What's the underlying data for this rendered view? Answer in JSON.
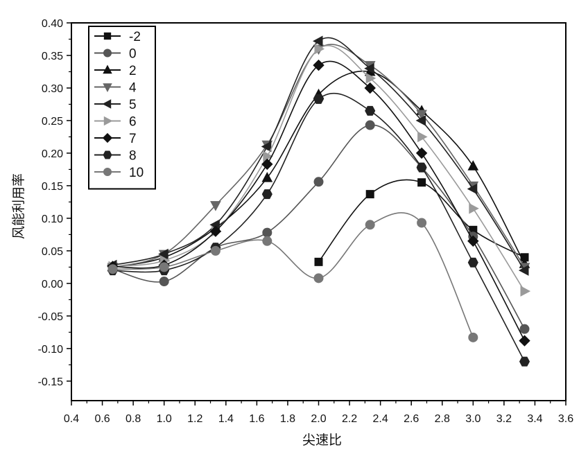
{
  "chart_data": {
    "type": "line",
    "xlabel": "尖速比",
    "ylabel": "风能利用率",
    "xlim": [
      0.4,
      3.6
    ],
    "ylim": [
      -0.18,
      0.4
    ],
    "x_ticks": [
      "0.4",
      "0.6",
      "0.8",
      "1.0",
      "1.2",
      "1.4",
      "1.6",
      "1.8",
      "2.0",
      "2.2",
      "2.4",
      "2.6",
      "2.8",
      "3.0",
      "3.2",
      "3.4",
      "3.6"
    ],
    "y_ticks": [
      "-0.15",
      "-0.10",
      "-0.05",
      "0.00",
      "0.05",
      "0.10",
      "0.15",
      "0.20",
      "0.25",
      "0.30",
      "0.35",
      "0.40"
    ],
    "grid": false,
    "legend_position": "top-left",
    "series": [
      {
        "name": "-2",
        "marker": "square",
        "color": "#111111",
        "x": [
          2.0,
          2.333,
          2.667,
          3.0,
          3.333
        ],
        "y": [
          0.033,
          0.137,
          0.155,
          0.082,
          0.04
        ]
      },
      {
        "name": "0",
        "marker": "circle",
        "color": "#555555",
        "x": [
          0.667,
          1.0,
          1.333,
          1.667,
          2.0,
          2.333,
          2.667,
          3.0,
          3.333
        ],
        "y": [
          0.022,
          0.003,
          0.055,
          0.078,
          0.156,
          0.243,
          0.178,
          0.072,
          -0.07
        ]
      },
      {
        "name": "2",
        "marker": "triangle-up",
        "color": "#111111",
        "x": [
          0.667,
          1.0,
          1.333,
          1.667,
          2.0,
          2.333,
          2.667,
          3.0,
          3.333
        ],
        "y": [
          0.025,
          0.04,
          0.085,
          0.162,
          0.29,
          0.325,
          0.265,
          0.18,
          0.03
        ]
      },
      {
        "name": "4",
        "marker": "triangle-down",
        "color": "#666666",
        "x": [
          0.667,
          1.0,
          1.333,
          1.667,
          2.0,
          2.333,
          2.667,
          3.0,
          3.333
        ],
        "y": [
          0.025,
          0.045,
          0.12,
          0.213,
          0.36,
          0.335,
          0.26,
          0.15,
          0.025
        ]
      },
      {
        "name": "5",
        "marker": "triangle-left",
        "color": "#222222",
        "x": [
          0.667,
          1.0,
          1.333,
          1.667,
          2.0,
          2.333,
          2.667,
          3.0,
          3.333
        ],
        "y": [
          0.028,
          0.045,
          0.09,
          0.21,
          0.372,
          0.33,
          0.25,
          0.145,
          0.02
        ]
      },
      {
        "name": "6",
        "marker": "triangle-right",
        "color": "#9a9a9a",
        "x": [
          0.667,
          1.0,
          1.333,
          1.667,
          2.0,
          2.333,
          2.667,
          3.0,
          3.333
        ],
        "y": [
          0.026,
          0.035,
          0.08,
          0.195,
          0.36,
          0.315,
          0.225,
          0.115,
          -0.012
        ]
      },
      {
        "name": "7",
        "marker": "diamond",
        "color": "#111111",
        "x": [
          0.667,
          1.0,
          1.333,
          1.667,
          2.0,
          2.333,
          2.667,
          3.0,
          3.333
        ],
        "y": [
          0.026,
          0.028,
          0.08,
          0.183,
          0.335,
          0.3,
          0.2,
          0.065,
          -0.088
        ]
      },
      {
        "name": "8",
        "marker": "hexagon",
        "color": "#222222",
        "x": [
          0.667,
          1.0,
          1.333,
          1.667,
          2.0,
          2.333,
          2.667,
          3.0,
          3.333
        ],
        "y": [
          0.02,
          0.02,
          0.055,
          0.137,
          0.283,
          0.265,
          0.178,
          0.032,
          -0.12
        ]
      },
      {
        "name": "10",
        "marker": "circle",
        "color": "#777777",
        "x": [
          0.667,
          1.0,
          1.333,
          1.667,
          2.0,
          2.333,
          2.667,
          3.0
        ],
        "y": [
          0.022,
          0.025,
          0.05,
          0.065,
          0.008,
          0.09,
          0.093,
          -0.083
        ]
      }
    ]
  }
}
